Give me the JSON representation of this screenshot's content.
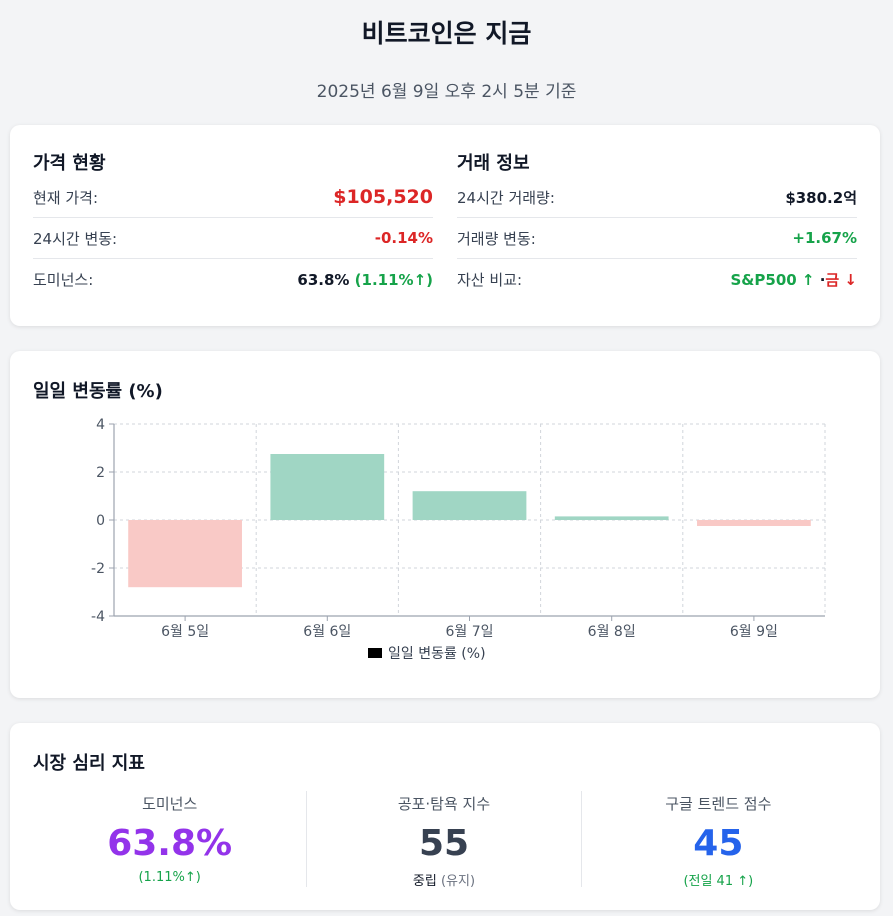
{
  "header": {
    "title": "비트코인은 지금",
    "subtitle": "2025년 6월 9일 오후 2시 5분 기준"
  },
  "price_status": {
    "title": "가격 현황",
    "rows": [
      {
        "label": "현재 가격:",
        "value": "$105,520"
      },
      {
        "label": "24시간 변동:",
        "value": "-0.14%"
      },
      {
        "label": "도미넌스:",
        "value": "63.8%",
        "change": "(1.11%↑)"
      }
    ]
  },
  "trade_info": {
    "title": "거래 정보",
    "rows": [
      {
        "label": "24시간 거래량:",
        "value": "$380.2억"
      },
      {
        "label": "거래량 변동:",
        "value": "+1.67%"
      },
      {
        "label": "자산 비교:",
        "up": "S&P500 ↑",
        "sep": " ·",
        "down": "금 ↓"
      }
    ]
  },
  "chart_data": {
    "type": "bar",
    "title": "일일 변동률 (%)",
    "categories": [
      "6월 5일",
      "6월 6일",
      "6월 7일",
      "6월 8일",
      "6월 9일"
    ],
    "series": [
      {
        "name": "일일 변동률 (%)",
        "values": [
          -2.8,
          2.75,
          1.2,
          0.15,
          -0.25
        ]
      }
    ],
    "ylim": [
      -4,
      4
    ],
    "yticks": [
      "4",
      "2",
      "0",
      "-2",
      "-4"
    ],
    "grid": true,
    "legend": "bottom",
    "colors": {
      "positive": "#a0d6c4",
      "negative": "#f9c9c6",
      "legend_swatch": "#000000"
    }
  },
  "sentiment": {
    "title": "시장 심리 지표",
    "dominance": {
      "label": "도미넌스",
      "value": "63.8%",
      "sub": "(1.11%↑)"
    },
    "fear_greed": {
      "label": "공포·탐욕 지수",
      "value": "55",
      "sub_main": "중립",
      "sub_extra": "(유지)"
    },
    "google_trends": {
      "label": "구글 트렌드 점수",
      "value": "45",
      "sub": "(전일 41 ↑)"
    }
  }
}
